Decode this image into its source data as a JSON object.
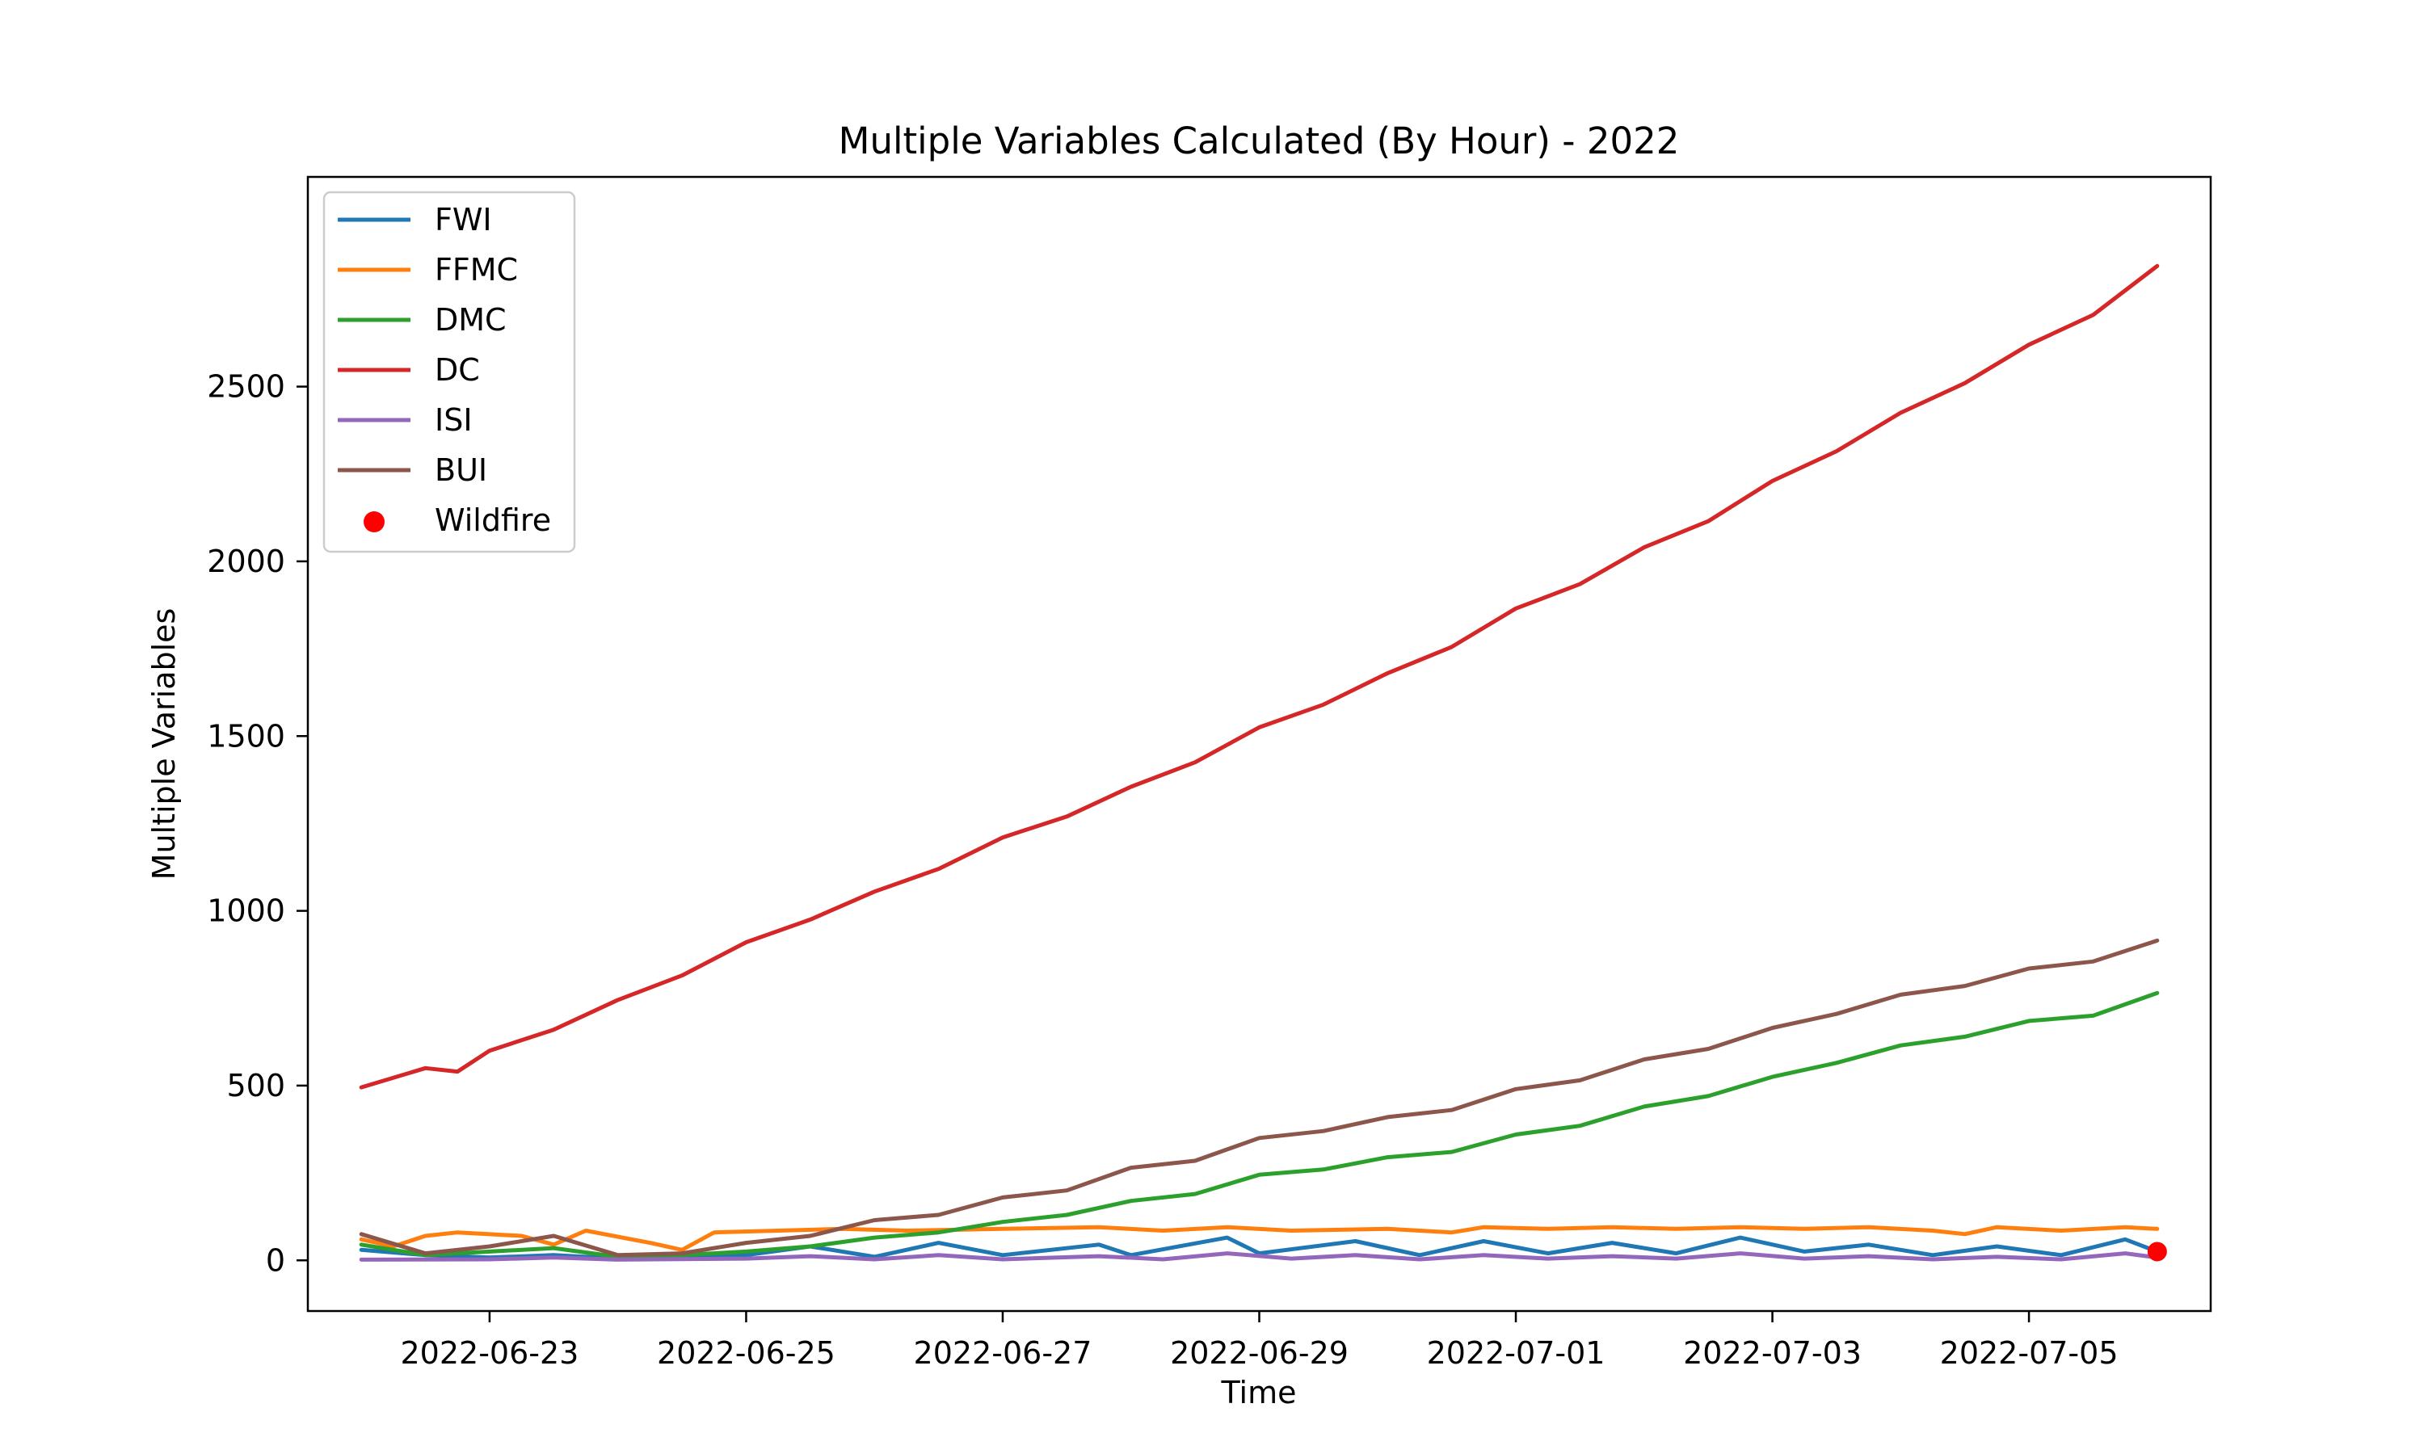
{
  "chart_data": {
    "type": "line",
    "title": "Multiple Variables Calculated (By Hour) - 2022",
    "xlabel": "Time",
    "ylabel": "Multiple Variables",
    "x_axis": "date",
    "xlim": [
      "2022-06-21T14:00",
      "2022-07-06T10:00"
    ],
    "ylim": [
      -145,
      3100
    ],
    "xticks": [
      "2022-06-23",
      "2022-06-25",
      "2022-06-27",
      "2022-06-29",
      "2022-07-01",
      "2022-07-03",
      "2022-07-05"
    ],
    "yticks": [
      0,
      500,
      1000,
      1500,
      2000,
      2500
    ],
    "grid": false,
    "legend_position": "top-left",
    "series": [
      {
        "name": "FWI",
        "color": "#1f77b4",
        "points": [
          [
            "2022-06-22T00:00",
            30
          ],
          [
            "2022-06-22T12:00",
            15
          ],
          [
            "2022-06-23T00:00",
            8
          ],
          [
            "2022-06-23T12:00",
            15
          ],
          [
            "2022-06-24T00:00",
            5
          ],
          [
            "2022-06-24T12:00",
            8
          ],
          [
            "2022-06-25T00:00",
            15
          ],
          [
            "2022-06-25T12:00",
            40
          ],
          [
            "2022-06-26T00:00",
            10
          ],
          [
            "2022-06-26T12:00",
            50
          ],
          [
            "2022-06-27T00:00",
            15
          ],
          [
            "2022-06-27T18:00",
            45
          ],
          [
            "2022-06-28T00:00",
            15
          ],
          [
            "2022-06-28T18:00",
            65
          ],
          [
            "2022-06-29T00:00",
            20
          ],
          [
            "2022-06-29T18:00",
            55
          ],
          [
            "2022-06-30T06:00",
            15
          ],
          [
            "2022-06-30T18:00",
            55
          ],
          [
            "2022-07-01T06:00",
            20
          ],
          [
            "2022-07-01T18:00",
            50
          ],
          [
            "2022-07-02T06:00",
            20
          ],
          [
            "2022-07-02T18:00",
            65
          ],
          [
            "2022-07-03T06:00",
            25
          ],
          [
            "2022-07-03T18:00",
            45
          ],
          [
            "2022-07-04T06:00",
            15
          ],
          [
            "2022-07-04T18:00",
            40
          ],
          [
            "2022-07-05T06:00",
            15
          ],
          [
            "2022-07-05T18:00",
            60
          ],
          [
            "2022-07-06T00:00",
            25
          ]
        ]
      },
      {
        "name": "FFMC",
        "color": "#ff7f0e",
        "points": [
          [
            "2022-06-22T00:00",
            60
          ],
          [
            "2022-06-22T06:00",
            40
          ],
          [
            "2022-06-22T12:00",
            70
          ],
          [
            "2022-06-22T18:00",
            80
          ],
          [
            "2022-06-23T06:00",
            70
          ],
          [
            "2022-06-23T12:00",
            45
          ],
          [
            "2022-06-23T18:00",
            85
          ],
          [
            "2022-06-24T06:00",
            50
          ],
          [
            "2022-06-24T12:00",
            30
          ],
          [
            "2022-06-24T18:00",
            80
          ],
          [
            "2022-06-25T06:00",
            85
          ],
          [
            "2022-06-25T18:00",
            90
          ],
          [
            "2022-06-26T06:00",
            85
          ],
          [
            "2022-06-27T00:00",
            90
          ],
          [
            "2022-06-27T18:00",
            95
          ],
          [
            "2022-06-28T06:00",
            85
          ],
          [
            "2022-06-28T18:00",
            95
          ],
          [
            "2022-06-29T06:00",
            85
          ],
          [
            "2022-06-30T00:00",
            90
          ],
          [
            "2022-06-30T12:00",
            80
          ],
          [
            "2022-06-30T18:00",
            95
          ],
          [
            "2022-07-01T06:00",
            90
          ],
          [
            "2022-07-01T18:00",
            95
          ],
          [
            "2022-07-02T06:00",
            90
          ],
          [
            "2022-07-02T18:00",
            95
          ],
          [
            "2022-07-03T06:00",
            90
          ],
          [
            "2022-07-03T18:00",
            95
          ],
          [
            "2022-07-04T06:00",
            85
          ],
          [
            "2022-07-04T12:00",
            75
          ],
          [
            "2022-07-04T18:00",
            95
          ],
          [
            "2022-07-05T06:00",
            85
          ],
          [
            "2022-07-05T18:00",
            95
          ],
          [
            "2022-07-06T00:00",
            90
          ]
        ]
      },
      {
        "name": "DMC",
        "color": "#2ca02c",
        "points": [
          [
            "2022-06-22T00:00",
            45
          ],
          [
            "2022-06-22T12:00",
            15
          ],
          [
            "2022-06-23T00:00",
            25
          ],
          [
            "2022-06-23T12:00",
            35
          ],
          [
            "2022-06-24T00:00",
            10
          ],
          [
            "2022-06-24T12:00",
            15
          ],
          [
            "2022-06-25T00:00",
            25
          ],
          [
            "2022-06-25T12:00",
            40
          ],
          [
            "2022-06-26T00:00",
            65
          ],
          [
            "2022-06-26T12:00",
            80
          ],
          [
            "2022-06-27T00:00",
            110
          ],
          [
            "2022-06-27T12:00",
            130
          ],
          [
            "2022-06-28T00:00",
            170
          ],
          [
            "2022-06-28T12:00",
            190
          ],
          [
            "2022-06-29T00:00",
            245
          ],
          [
            "2022-06-29T12:00",
            260
          ],
          [
            "2022-06-30T00:00",
            295
          ],
          [
            "2022-06-30T12:00",
            310
          ],
          [
            "2022-07-01T00:00",
            360
          ],
          [
            "2022-07-01T12:00",
            385
          ],
          [
            "2022-07-02T00:00",
            440
          ],
          [
            "2022-07-02T12:00",
            470
          ],
          [
            "2022-07-03T00:00",
            525
          ],
          [
            "2022-07-03T12:00",
            565
          ],
          [
            "2022-07-04T00:00",
            615
          ],
          [
            "2022-07-04T12:00",
            640
          ],
          [
            "2022-07-05T00:00",
            685
          ],
          [
            "2022-07-05T12:00",
            700
          ],
          [
            "2022-07-06T00:00",
            765
          ]
        ]
      },
      {
        "name": "DC",
        "color": "#d62728",
        "points": [
          [
            "2022-06-22T00:00",
            495
          ],
          [
            "2022-06-22T12:00",
            550
          ],
          [
            "2022-06-22T18:00",
            540
          ],
          [
            "2022-06-23T00:00",
            600
          ],
          [
            "2022-06-23T12:00",
            660
          ],
          [
            "2022-06-24T00:00",
            745
          ],
          [
            "2022-06-24T12:00",
            815
          ],
          [
            "2022-06-25T00:00",
            910
          ],
          [
            "2022-06-25T12:00",
            975
          ],
          [
            "2022-06-26T00:00",
            1055
          ],
          [
            "2022-06-26T12:00",
            1120
          ],
          [
            "2022-06-27T00:00",
            1210
          ],
          [
            "2022-06-27T12:00",
            1270
          ],
          [
            "2022-06-28T00:00",
            1355
          ],
          [
            "2022-06-28T12:00",
            1425
          ],
          [
            "2022-06-29T00:00",
            1525
          ],
          [
            "2022-06-29T12:00",
            1590
          ],
          [
            "2022-06-30T00:00",
            1680
          ],
          [
            "2022-06-30T12:00",
            1755
          ],
          [
            "2022-07-01T00:00",
            1865
          ],
          [
            "2022-07-01T12:00",
            1935
          ],
          [
            "2022-07-02T00:00",
            2040
          ],
          [
            "2022-07-02T12:00",
            2115
          ],
          [
            "2022-07-03T00:00",
            2230
          ],
          [
            "2022-07-03T12:00",
            2315
          ],
          [
            "2022-07-04T00:00",
            2425
          ],
          [
            "2022-07-04T12:00",
            2510
          ],
          [
            "2022-07-05T00:00",
            2620
          ],
          [
            "2022-07-05T12:00",
            2705
          ],
          [
            "2022-07-06T00:00",
            2845
          ]
        ]
      },
      {
        "name": "ISI",
        "color": "#9467bd",
        "points": [
          [
            "2022-06-22T00:00",
            2
          ],
          [
            "2022-06-23T00:00",
            3
          ],
          [
            "2022-06-23T12:00",
            8
          ],
          [
            "2022-06-24T00:00",
            2
          ],
          [
            "2022-06-25T00:00",
            5
          ],
          [
            "2022-06-25T12:00",
            12
          ],
          [
            "2022-06-26T00:00",
            3
          ],
          [
            "2022-06-26T12:00",
            15
          ],
          [
            "2022-06-27T00:00",
            3
          ],
          [
            "2022-06-27T18:00",
            12
          ],
          [
            "2022-06-28T06:00",
            3
          ],
          [
            "2022-06-28T18:00",
            20
          ],
          [
            "2022-06-29T06:00",
            5
          ],
          [
            "2022-06-29T18:00",
            15
          ],
          [
            "2022-06-30T06:00",
            3
          ],
          [
            "2022-06-30T18:00",
            15
          ],
          [
            "2022-07-01T06:00",
            5
          ],
          [
            "2022-07-01T18:00",
            12
          ],
          [
            "2022-07-02T06:00",
            5
          ],
          [
            "2022-07-02T18:00",
            20
          ],
          [
            "2022-07-03T06:00",
            5
          ],
          [
            "2022-07-03T18:00",
            12
          ],
          [
            "2022-07-04T06:00",
            3
          ],
          [
            "2022-07-04T18:00",
            10
          ],
          [
            "2022-07-05T06:00",
            3
          ],
          [
            "2022-07-05T18:00",
            20
          ],
          [
            "2022-07-06T00:00",
            8
          ]
        ]
      },
      {
        "name": "BUI",
        "color": "#8c564b",
        "points": [
          [
            "2022-06-22T00:00",
            75
          ],
          [
            "2022-06-22T12:00",
            20
          ],
          [
            "2022-06-23T00:00",
            40
          ],
          [
            "2022-06-23T12:00",
            70
          ],
          [
            "2022-06-24T00:00",
            15
          ],
          [
            "2022-06-24T12:00",
            20
          ],
          [
            "2022-06-25T00:00",
            50
          ],
          [
            "2022-06-25T12:00",
            70
          ],
          [
            "2022-06-26T00:00",
            115
          ],
          [
            "2022-06-26T12:00",
            130
          ],
          [
            "2022-06-27T00:00",
            180
          ],
          [
            "2022-06-27T12:00",
            200
          ],
          [
            "2022-06-28T00:00",
            265
          ],
          [
            "2022-06-28T12:00",
            285
          ],
          [
            "2022-06-29T00:00",
            350
          ],
          [
            "2022-06-29T12:00",
            370
          ],
          [
            "2022-06-30T00:00",
            410
          ],
          [
            "2022-06-30T12:00",
            430
          ],
          [
            "2022-07-01T00:00",
            490
          ],
          [
            "2022-07-01T12:00",
            515
          ],
          [
            "2022-07-02T00:00",
            575
          ],
          [
            "2022-07-02T12:00",
            605
          ],
          [
            "2022-07-03T00:00",
            665
          ],
          [
            "2022-07-03T12:00",
            705
          ],
          [
            "2022-07-04T00:00",
            760
          ],
          [
            "2022-07-04T12:00",
            785
          ],
          [
            "2022-07-05T00:00",
            835
          ],
          [
            "2022-07-05T12:00",
            855
          ],
          [
            "2022-07-06T00:00",
            915
          ]
        ]
      }
    ],
    "markers": [
      {
        "name": "Wildfire",
        "color": "#ff0000",
        "x": "2022-07-06T00:00",
        "y": 25
      }
    ]
  }
}
